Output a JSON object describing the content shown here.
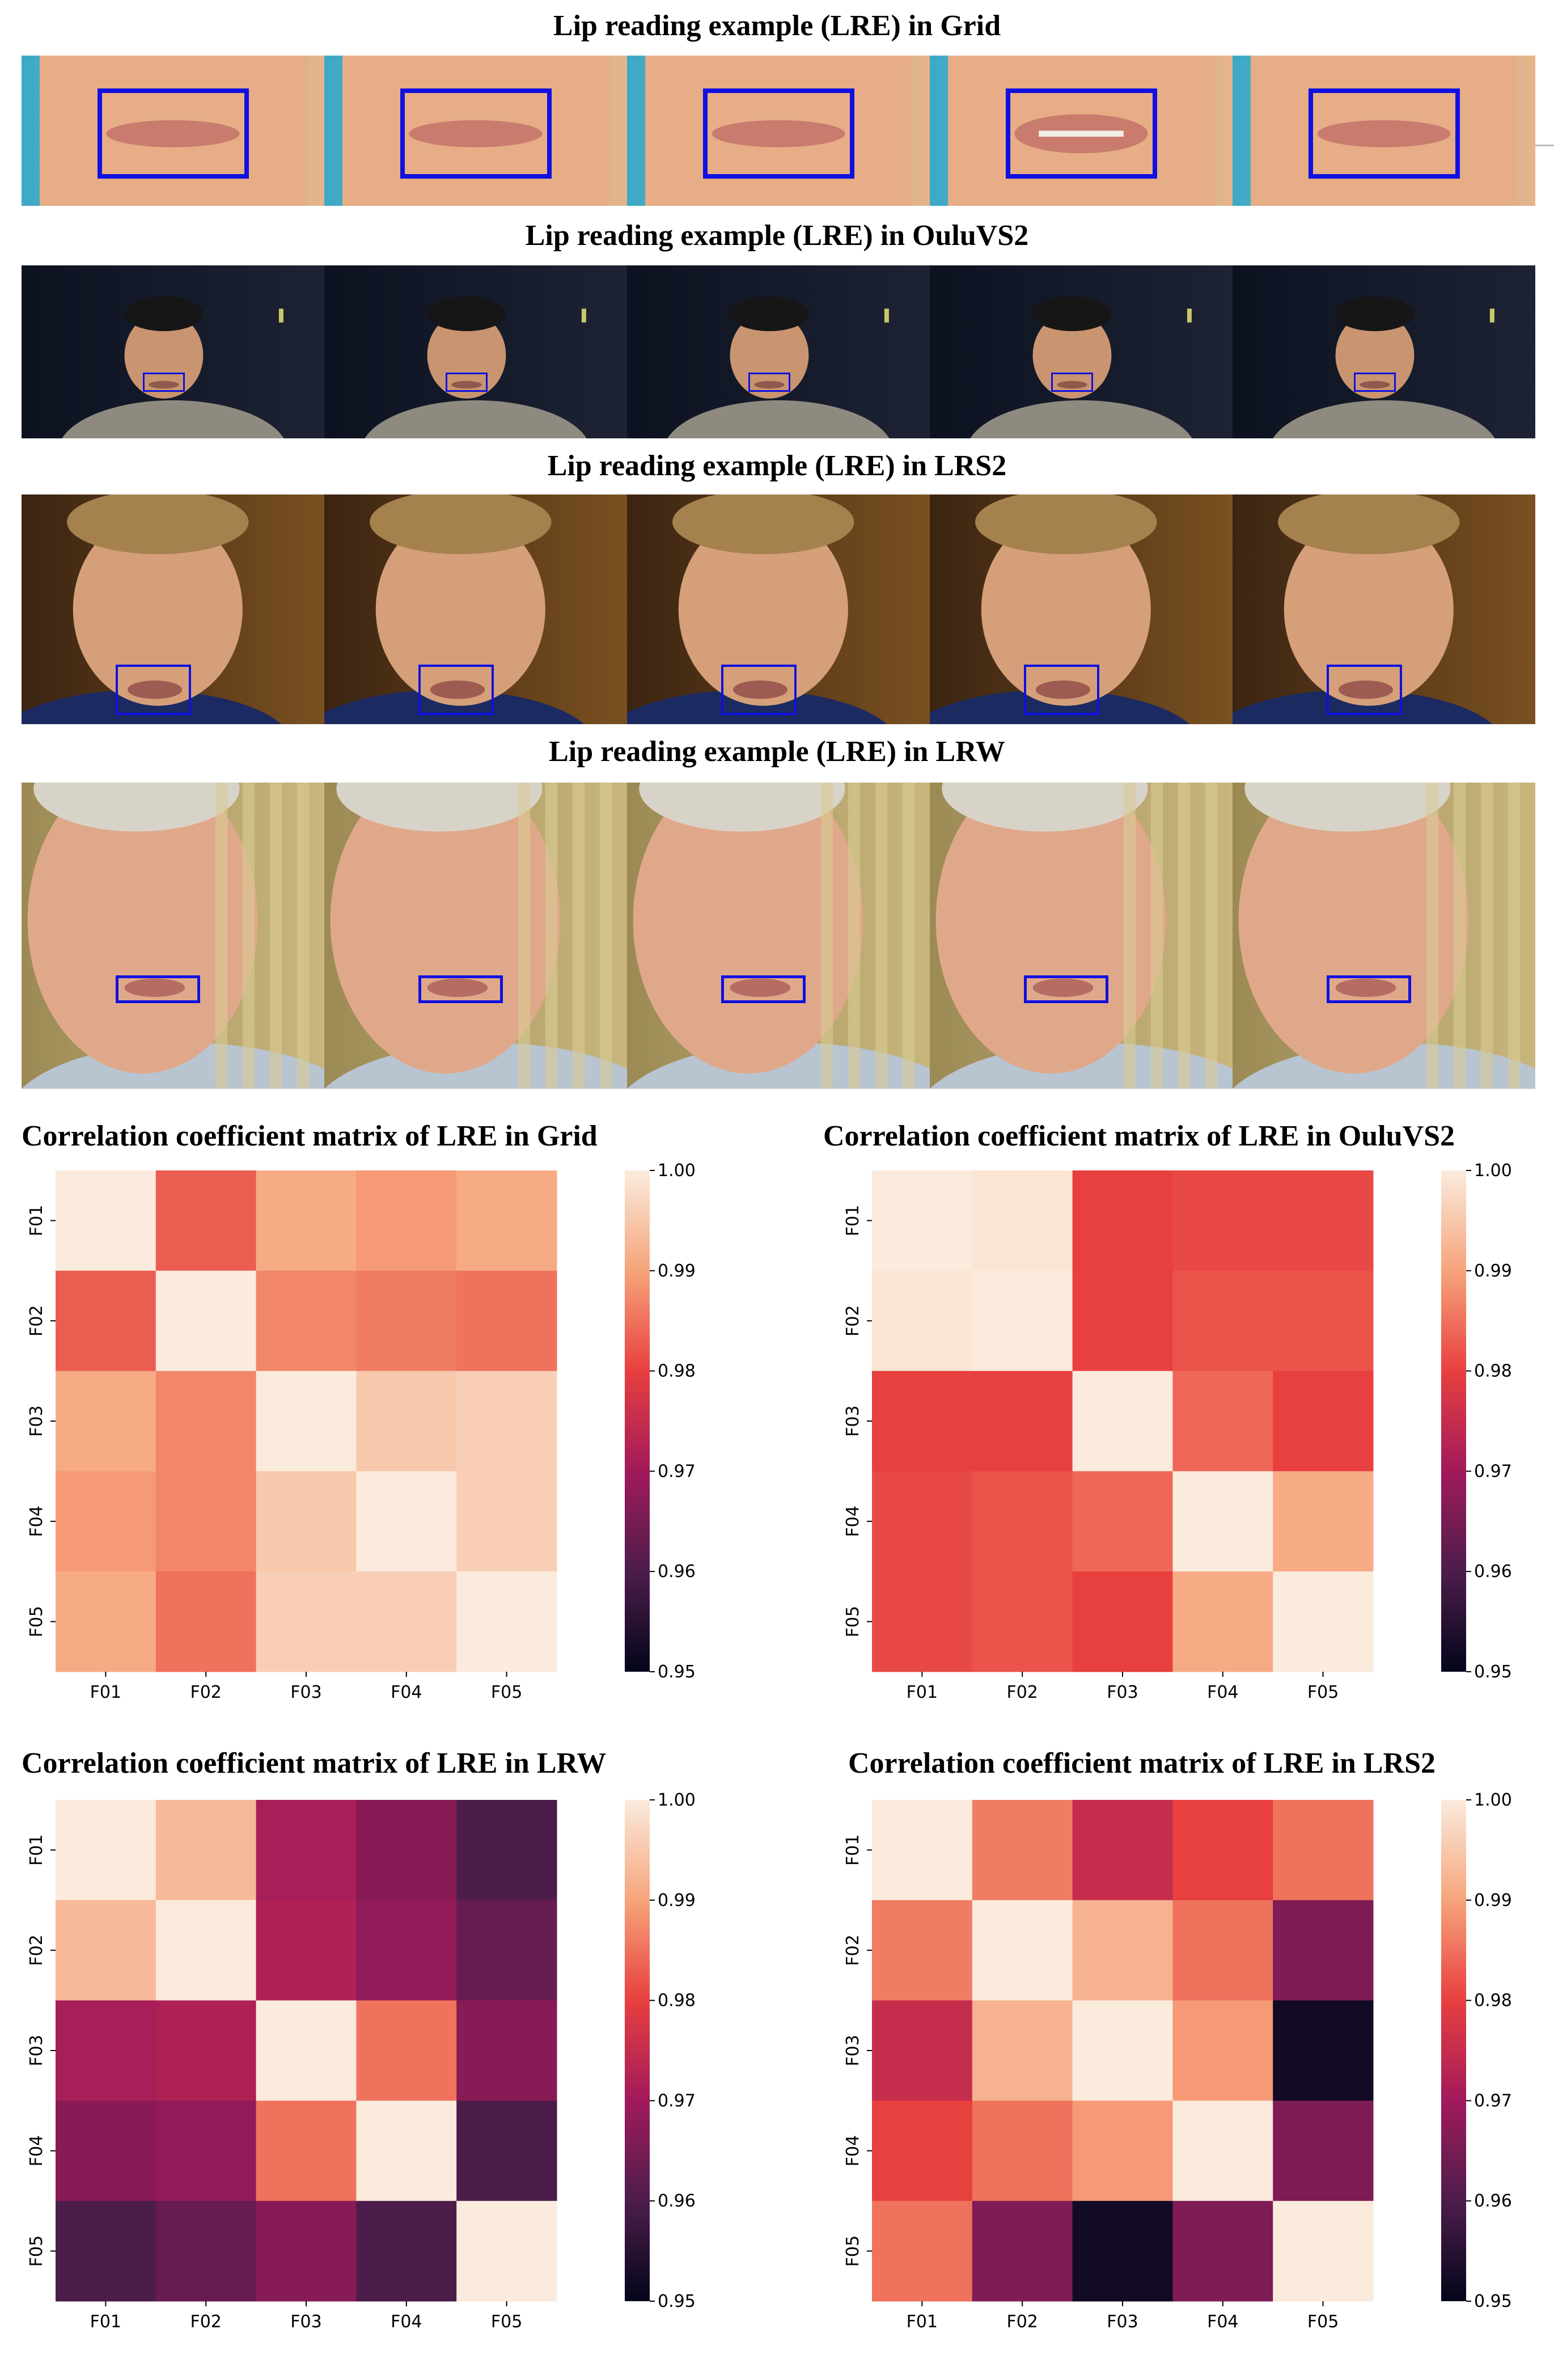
{
  "photo_sections": [
    {
      "title": "Lip reading example (LRE) in Grid",
      "dataset": "Grid"
    },
    {
      "title": "Lip reading example (LRE) in OuluVS2",
      "dataset": "OuluVS2"
    },
    {
      "title": "Lip reading example (LRE) in LRS2",
      "dataset": "LRS2"
    },
    {
      "title": "Lip reading example (LRE) in LRW",
      "dataset": "LRW"
    }
  ],
  "colors": {
    "lip_box": "#1010e0",
    "colormap_stops": [
      "#03051a",
      "#4c1d4b",
      "#a11a5b",
      "#e83f3f",
      "#f6a47b",
      "#faebdd"
    ]
  },
  "chart_data": [
    {
      "type": "heatmap",
      "title": "Correlation coefficient matrix of LRE in Grid",
      "x_labels": [
        "F01",
        "F02",
        "F03",
        "F04",
        "F05"
      ],
      "y_labels": [
        "F01",
        "F02",
        "F03",
        "F04",
        "F05"
      ],
      "values": [
        [
          1.0,
          0.983,
          0.991,
          0.989,
          0.991
        ],
        [
          0.983,
          1.0,
          0.987,
          0.986,
          0.985
        ],
        [
          0.991,
          0.987,
          1.0,
          0.995,
          0.996
        ],
        [
          0.989,
          0.987,
          0.995,
          1.0,
          0.996
        ],
        [
          0.991,
          0.985,
          0.996,
          0.996,
          1.0
        ]
      ],
      "vmin": 0.95,
      "vmax": 1.0,
      "colorbar_ticks": [
        "1.00",
        "0.99",
        "0.98",
        "0.97",
        "0.96",
        "0.95"
      ]
    },
    {
      "type": "heatmap",
      "title": "Correlation coefficient matrix of LRE in OuluVS2",
      "x_labels": [
        "F01",
        "F02",
        "F03",
        "F04",
        "F05"
      ],
      "y_labels": [
        "F01",
        "F02",
        "F03",
        "F04",
        "F05"
      ],
      "values": [
        [
          1.0,
          0.999,
          0.98,
          0.981,
          0.981
        ],
        [
          0.999,
          1.0,
          0.98,
          0.982,
          0.982
        ],
        [
          0.98,
          0.98,
          1.0,
          0.984,
          0.98
        ],
        [
          0.981,
          0.982,
          0.984,
          1.0,
          0.991
        ],
        [
          0.981,
          0.982,
          0.98,
          0.991,
          1.0
        ]
      ],
      "vmin": 0.95,
      "vmax": 1.0,
      "colorbar_ticks": [
        "1.00",
        "0.99",
        "0.98",
        "0.97",
        "0.96",
        "0.95"
      ]
    },
    {
      "type": "heatmap",
      "title": "Correlation coefficient matrix of LRE in LRW",
      "x_labels": [
        "F01",
        "F02",
        "F03",
        "F04",
        "F05"
      ],
      "y_labels": [
        "F01",
        "F02",
        "F03",
        "F04",
        "F05"
      ],
      "values": [
        [
          1.0,
          0.993,
          0.971,
          0.967,
          0.96
        ],
        [
          0.993,
          1.0,
          0.972,
          0.968,
          0.963
        ],
        [
          0.971,
          0.972,
          1.0,
          0.985,
          0.967
        ],
        [
          0.967,
          0.968,
          0.985,
          1.0,
          0.96
        ],
        [
          0.96,
          0.963,
          0.967,
          0.96,
          1.0
        ]
      ],
      "vmin": 0.95,
      "vmax": 1.0,
      "colorbar_ticks": [
        "1.00",
        "0.99",
        "0.98",
        "0.97",
        "0.96",
        "0.95"
      ]
    },
    {
      "type": "heatmap",
      "title": "Correlation coefficient matrix of LRE in LRS2",
      "x_labels": [
        "F01",
        "F02",
        "F03",
        "F04",
        "F05"
      ],
      "y_labels": [
        "F01",
        "F02",
        "F03",
        "F04",
        "F05"
      ],
      "values": [
        [
          1.0,
          0.986,
          0.975,
          0.98,
          0.985
        ],
        [
          0.986,
          1.0,
          0.992,
          0.985,
          0.966
        ],
        [
          0.975,
          0.992,
          1.0,
          0.989,
          0.952
        ],
        [
          0.98,
          0.985,
          0.989,
          1.0,
          0.966
        ],
        [
          0.985,
          0.966,
          0.952,
          0.966,
          1.0
        ]
      ],
      "vmin": 0.95,
      "vmax": 1.0,
      "colorbar_ticks": [
        "1.00",
        "0.99",
        "0.98",
        "0.97",
        "0.96",
        "0.95"
      ]
    }
  ]
}
